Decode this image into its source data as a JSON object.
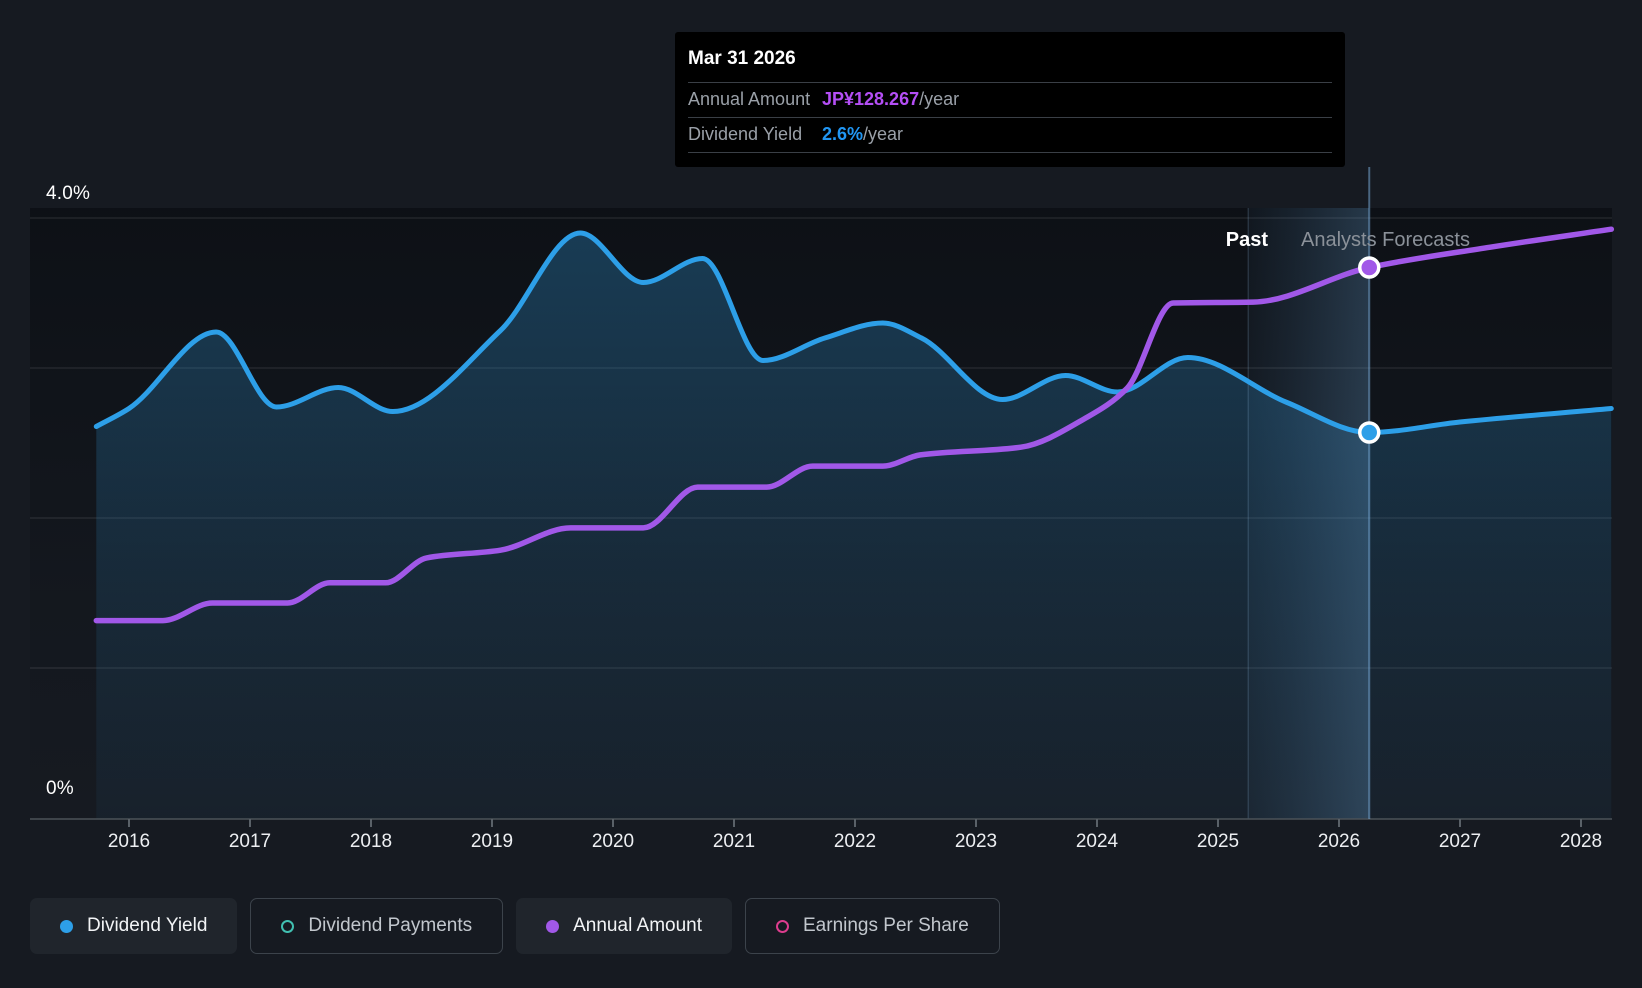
{
  "tooltip": {
    "date": "Mar 31 2026",
    "rows": [
      {
        "label": "Annual Amount",
        "value": "JP¥128.267",
        "suffix": "/year",
        "color": "#b44ef5"
      },
      {
        "label": "Dividend Yield",
        "value": "2.6%",
        "suffix": "/year",
        "color": "#2196f3"
      }
    ]
  },
  "annotations": {
    "past": "Past",
    "forecast": "Analysts Forecasts"
  },
  "legend": [
    {
      "label": "Dividend Yield",
      "color": "#2d9fe8",
      "marker": "filled",
      "active": true
    },
    {
      "label": "Dividend Payments",
      "color": "#41c0b1",
      "marker": "outline",
      "active": false
    },
    {
      "label": "Annual Amount",
      "color": "#a158e8",
      "marker": "filled",
      "active": true
    },
    {
      "label": "Earnings Per Share",
      "color": "#dd3d8e",
      "marker": "outline",
      "active": false
    }
  ],
  "chart_data": {
    "type": "line",
    "title": "Dividend yield and annual amount, past and analysts forecasts",
    "x_axis": {
      "ticks": [
        "2016",
        "2017",
        "2018",
        "2019",
        "2020",
        "2021",
        "2022",
        "2023",
        "2024",
        "2025",
        "2026",
        "2027",
        "2028"
      ],
      "range": [
        2015.72,
        2028.3
      ]
    },
    "y_axis_left": {
      "label_top": "4.0%",
      "label_bottom": "0%",
      "unit": "%",
      "range": [
        0,
        4.07
      ],
      "gridlines_pct": [
        1,
        2,
        3,
        4
      ]
    },
    "grid": true,
    "legend_position": "bottom",
    "forecast_start_x": 2025.25,
    "hover_x": 2026.25,
    "series": [
      {
        "name": "Dividend Yield",
        "unit": "%",
        "color": "#2d9fe8",
        "style": "line-with-area",
        "points": [
          [
            2015.73,
            2.61
          ],
          [
            2016.0,
            2.73
          ],
          [
            2016.72,
            3.24
          ],
          [
            2017.22,
            2.74
          ],
          [
            2017.73,
            2.87
          ],
          [
            2018.18,
            2.71
          ],
          [
            2019.07,
            3.25
          ],
          [
            2019.73,
            3.9
          ],
          [
            2020.25,
            3.57
          ],
          [
            2020.74,
            3.73
          ],
          [
            2021.24,
            3.05
          ],
          [
            2021.75,
            3.2
          ],
          [
            2022.23,
            3.3
          ],
          [
            2022.55,
            3.2
          ],
          [
            2023.22,
            2.79
          ],
          [
            2023.74,
            2.95
          ],
          [
            2024.17,
            2.84
          ],
          [
            2024.75,
            3.07
          ],
          [
            2025.57,
            2.77
          ],
          [
            2026.25,
            2.57
          ],
          [
            2027.0,
            2.64
          ],
          [
            2028.25,
            2.73
          ]
        ]
      },
      {
        "name": "Annual Amount",
        "unit": "JP¥/year",
        "color": "#a158e8",
        "style": "line",
        "display_scale_yen_per_pct": 34.95,
        "points": [
          [
            2015.73,
            46.0
          ],
          [
            2016.28,
            46.0
          ],
          [
            2016.69,
            50.1
          ],
          [
            2017.31,
            50.1
          ],
          [
            2017.66,
            54.8
          ],
          [
            2018.12,
            54.8
          ],
          [
            2018.46,
            60.6
          ],
          [
            2019.07,
            62.4
          ],
          [
            2019.65,
            67.6
          ],
          [
            2020.25,
            67.6
          ],
          [
            2020.7,
            77.1
          ],
          [
            2021.27,
            77.1
          ],
          [
            2021.65,
            82.0
          ],
          [
            2022.23,
            82.0
          ],
          [
            2022.54,
            84.6
          ],
          [
            2023.37,
            86.4
          ],
          [
            2023.92,
            93.4
          ],
          [
            2024.25,
            100.2
          ],
          [
            2024.63,
            120.0
          ],
          [
            2025.29,
            120.2
          ],
          [
            2026.25,
            128.267
          ],
          [
            2027.25,
            133.0
          ],
          [
            2028.25,
            137.2
          ]
        ]
      }
    ],
    "markers": [
      {
        "series": "Annual Amount",
        "x": 2026.25,
        "y": 128.267
      },
      {
        "series": "Dividend Yield",
        "x": 2026.25,
        "y": 2.57
      }
    ]
  },
  "colors": {
    "background": "#161a21",
    "dividend_yield_line": "#2d9fe8",
    "annual_amount_line": "#a158e8",
    "gridline": "rgba(255,255,255,0.13)"
  }
}
